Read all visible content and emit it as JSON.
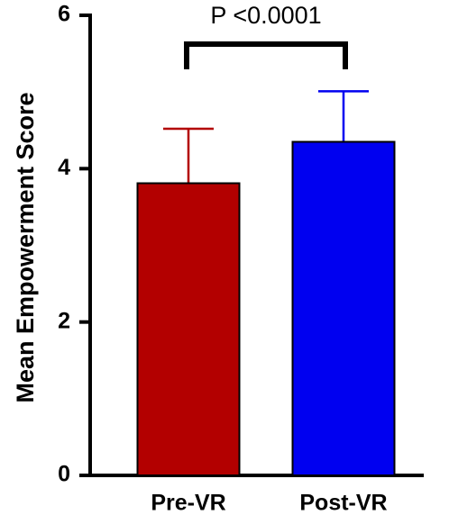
{
  "chart_data": {
    "type": "bar",
    "y_label": "Mean Empowerment Score",
    "annotation": "P <0.0001",
    "categories": [
      "Pre-VR",
      "Post-VR"
    ],
    "values": [
      3.81,
      4.35
    ],
    "errors": [
      0.71,
      0.66
    ],
    "colors": [
      "#b30000",
      "#0000f0"
    ],
    "ylim": [
      0,
      6
    ],
    "yticks": [
      0,
      2,
      4,
      6
    ],
    "grid": false
  }
}
